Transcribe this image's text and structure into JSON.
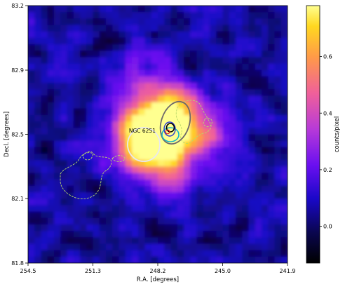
{
  "chart_data": {
    "type": "heatmap",
    "title": "",
    "xlabel": "R.A. [degrees]",
    "ylabel": "Decl. [degrees]",
    "x_ticks": [
      "254.5",
      "251.3",
      "248.2",
      "245.0",
      "241.9"
    ],
    "y_ticks": [
      "81.8",
      "82.1",
      "82.5",
      "82.9",
      "83.2"
    ],
    "xlim": [
      254.5,
      241.9
    ],
    "ylim": [
      81.8,
      83.2
    ],
    "colorbar": {
      "label": "counts/pixel",
      "ticks": [
        "0.0",
        "0.2",
        "0.4",
        "0.6"
      ],
      "tick_values": [
        0.0,
        0.2,
        0.4,
        0.6
      ],
      "range": [
        -0.13,
        0.78
      ],
      "colormap": "gnuplot2"
    },
    "annotations": [
      {
        "text": "NGC 6251",
        "ra": 249.2,
        "dec": 82.52
      }
    ],
    "emission_peaks": [
      {
        "ra": 248.0,
        "dec": 82.53,
        "amplitude": 0.75
      },
      {
        "ra": 248.5,
        "dec": 82.45,
        "amplitude": 0.5
      },
      {
        "ra": 247.2,
        "dec": 82.62,
        "amplitude": 0.35
      },
      {
        "ra": 249.5,
        "dec": 82.45,
        "amplitude": 0.25
      },
      {
        "ra": 245.5,
        "dec": 82.5,
        "amplitude": 0.22
      },
      {
        "ra": 247.5,
        "dec": 82.3,
        "amplitude": 0.2
      },
      {
        "ra": 249.0,
        "dec": 82.8,
        "amplitude": 0.18
      }
    ],
    "regions": [
      {
        "name": "large-grey-ellipse",
        "ra": 247.5,
        "dec": 82.6,
        "color": "#6f6a6a"
      },
      {
        "name": "white-circle",
        "ra": 249.3,
        "dec": 82.37,
        "color": "#e8e8f0"
      },
      {
        "name": "cyan-ellipse",
        "ra": 247.9,
        "dec": 82.5,
        "color": "#17b3c8"
      },
      {
        "name": "blue-ellipse",
        "ra": 247.75,
        "dec": 82.55,
        "color": "#2a3ad0"
      },
      {
        "name": "black-ellipse",
        "ra": 247.85,
        "dec": 82.57,
        "color": "#000000"
      },
      {
        "name": "red-circle",
        "ra": 247.9,
        "dec": 82.54,
        "color": "#e02020"
      }
    ]
  }
}
